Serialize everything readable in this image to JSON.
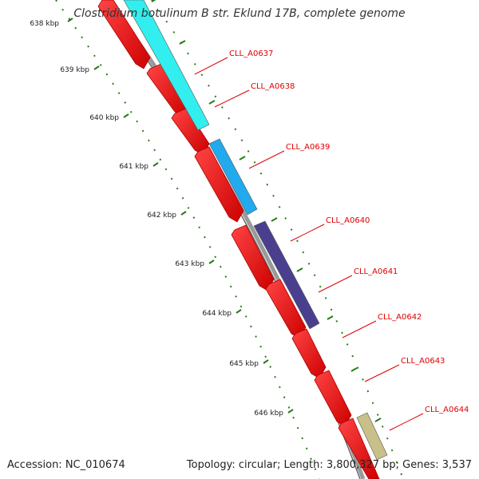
{
  "title": "Clostridium botulinum B str. Eklund 17B, complete genome",
  "footer": {
    "accession": "Accession: NC_010674",
    "summary": "Topology: circular; Length: 3,800,327 bp; Genes: 3,537"
  },
  "ticks": [
    {
      "label": "638 kbp",
      "pos": 638
    },
    {
      "label": "639 kbp",
      "pos": 639
    },
    {
      "label": "640 kbp",
      "pos": 640
    },
    {
      "label": "641 kbp",
      "pos": 641
    },
    {
      "label": "642 kbp",
      "pos": 642
    },
    {
      "label": "643 kbp",
      "pos": 643
    },
    {
      "label": "644 kbp",
      "pos": 644
    },
    {
      "label": "645 kbp",
      "pos": 645
    },
    {
      "label": "646 kbp",
      "pos": 646
    }
  ],
  "genes": [
    {
      "name": "CLL_A0637"
    },
    {
      "name": "CLL_A0638"
    },
    {
      "name": "CLL_A0639"
    },
    {
      "name": "CLL_A0640"
    },
    {
      "name": "CLL_A0641"
    },
    {
      "name": "CLL_A0642"
    },
    {
      "name": "CLL_A0643"
    },
    {
      "name": "CLL_A0644"
    }
  ],
  "colors": {
    "cds": "#ee1111",
    "backbone": "#888888",
    "tick": "#2a7a18",
    "gene_label": "#dd0000",
    "cyan": "#33eeee",
    "sky": "#22aaee",
    "purple": "#4a3f8f",
    "khaki": "#c8c088"
  }
}
